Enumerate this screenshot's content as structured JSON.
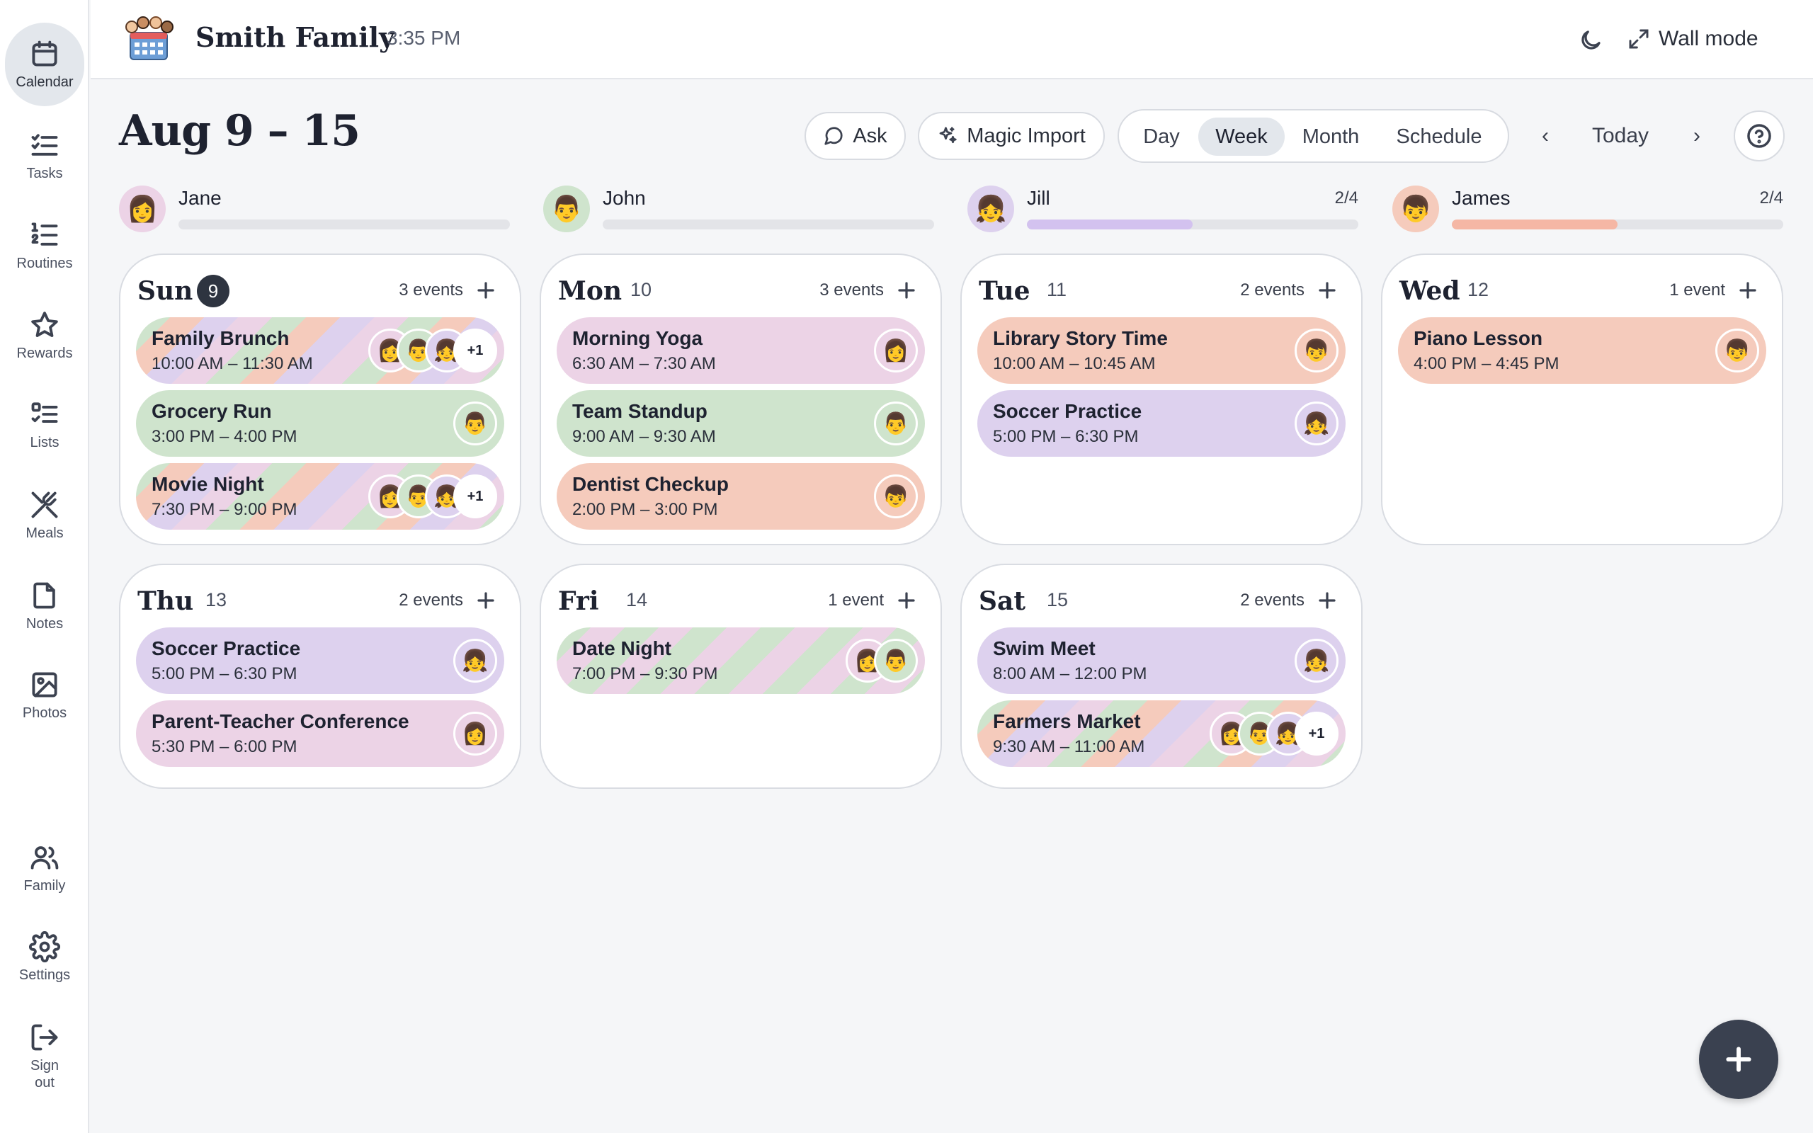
{
  "sidebar": {
    "items": [
      {
        "label": "Calendar",
        "icon": "calendar-icon",
        "active": true
      },
      {
        "label": "Tasks",
        "icon": "tasks-icon"
      },
      {
        "label": "Routines",
        "icon": "routines-icon"
      },
      {
        "label": "Rewards",
        "icon": "star-icon"
      },
      {
        "label": "Lists",
        "icon": "lists-icon"
      },
      {
        "label": "Meals",
        "icon": "utensils-icon"
      },
      {
        "label": "Notes",
        "icon": "note-icon"
      },
      {
        "label": "Photos",
        "icon": "image-icon"
      }
    ],
    "bottom": [
      {
        "label": "Family",
        "icon": "users-icon"
      },
      {
        "label": "Settings",
        "icon": "gear-icon"
      },
      {
        "label": "Sign out",
        "icon": "sign-out-icon"
      }
    ]
  },
  "header": {
    "family_name": "Smith Family",
    "time": "3:35 PM",
    "wall_mode": "Wall mode"
  },
  "toolbar": {
    "week_title": "Aug 9 – 15",
    "ask": "Ask",
    "magic_import": "Magic Import",
    "views": [
      "Day",
      "Week",
      "Month",
      "Schedule"
    ],
    "active_view": "Week",
    "prev": "‹",
    "today": "Today",
    "next": "›"
  },
  "members": [
    {
      "name": "Jane",
      "progress_text": "",
      "progress": 0,
      "color": "#ecd3e6",
      "bar": "#d9b3d0",
      "emoji": "👩"
    },
    {
      "name": "John",
      "progress_text": "",
      "progress": 0,
      "color": "#cfe4cd",
      "bar": "#b2d4ae",
      "emoji": "👨"
    },
    {
      "name": "Jill",
      "progress_text": "2/4",
      "progress": 0.5,
      "color": "#ddd1ee",
      "bar": "#d3c2ef",
      "emoji": "👧"
    },
    {
      "name": "James",
      "progress_text": "2/4",
      "progress": 0.5,
      "color": "#f5cbbc",
      "bar": "#f5b7a5",
      "emoji": "👦"
    }
  ],
  "days": [
    {
      "name": "Sun",
      "num": "9",
      "today": true,
      "count": "3 events",
      "events": [
        {
          "title": "Family Brunch",
          "time": "10:00 AM – 11:30 AM",
          "style": "c-multi",
          "avatars": [
            "Jane",
            "John",
            "Jill"
          ],
          "more": "+1"
        },
        {
          "title": "Grocery Run",
          "time": "3:00 PM – 4:00 PM",
          "style": "c-john",
          "avatars": [
            "John"
          ]
        },
        {
          "title": "Movie Night",
          "time": "7:30 PM – 9:00 PM",
          "style": "c-multi",
          "avatars": [
            "Jane",
            "John",
            "Jill"
          ],
          "more": "+1"
        }
      ]
    },
    {
      "name": "Mon",
      "num": "10",
      "count": "3 events",
      "events": [
        {
          "title": "Morning Yoga",
          "time": "6:30 AM – 7:30 AM",
          "style": "c-jane",
          "avatars": [
            "Jane"
          ]
        },
        {
          "title": "Team Standup",
          "time": "9:00 AM – 9:30 AM",
          "style": "c-john",
          "avatars": [
            "John"
          ]
        },
        {
          "title": "Dentist Checkup",
          "time": "2:00 PM – 3:00 PM",
          "style": "c-james",
          "avatars": [
            "James"
          ]
        }
      ]
    },
    {
      "name": "Tue",
      "num": "11",
      "count": "2 events",
      "events": [
        {
          "title": "Library Story Time",
          "time": "10:00 AM – 10:45 AM",
          "style": "c-james",
          "avatars": [
            "James"
          ]
        },
        {
          "title": "Soccer Practice",
          "time": "5:00 PM – 6:30 PM",
          "style": "c-jill",
          "avatars": [
            "Jill"
          ]
        }
      ]
    },
    {
      "name": "Wed",
      "num": "12",
      "count": "1 event",
      "events": [
        {
          "title": "Piano Lesson",
          "time": "4:00 PM – 4:45 PM",
          "style": "c-james",
          "avatars": [
            "James"
          ]
        }
      ]
    },
    {
      "name": "Thu",
      "num": "13",
      "count": "2 events",
      "events": [
        {
          "title": "Soccer Practice",
          "time": "5:00 PM – 6:30 PM",
          "style": "c-jill",
          "avatars": [
            "Jill"
          ]
        },
        {
          "title": "Parent-Teacher Conference",
          "time": "5:30 PM – 6:00 PM",
          "style": "c-jane",
          "avatars": [
            "Jane"
          ]
        }
      ]
    },
    {
      "name": "Fri",
      "num": "14",
      "count": "1 event",
      "events": [
        {
          "title": "Date Night",
          "time": "7:00 PM – 9:30 PM",
          "style": "c-duo",
          "avatars": [
            "Jane",
            "John"
          ]
        }
      ]
    },
    {
      "name": "Sat",
      "num": "15",
      "count": "2 events",
      "events": [
        {
          "title": "Swim Meet",
          "time": "8:00 AM – 12:00 PM",
          "style": "c-jill",
          "avatars": [
            "Jill"
          ]
        },
        {
          "title": "Farmers Market",
          "time": "9:30 AM – 11:00 AM",
          "style": "c-multi",
          "avatars": [
            "Jane",
            "John",
            "Jill"
          ],
          "more": "+1"
        }
      ]
    }
  ]
}
